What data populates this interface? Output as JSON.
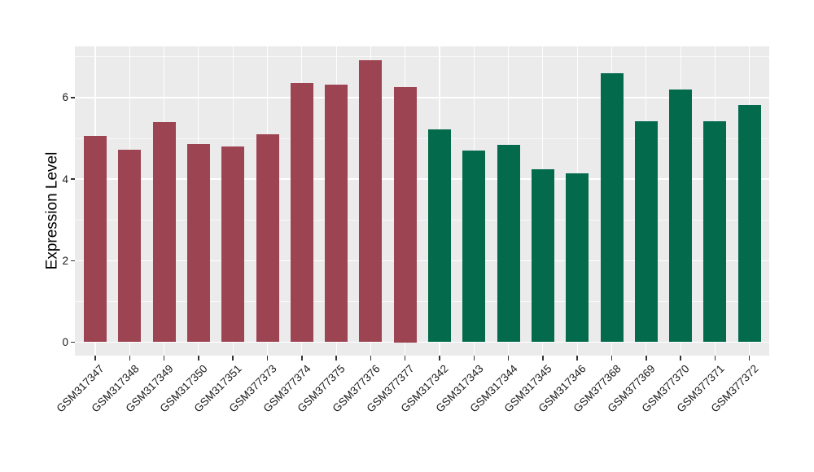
{
  "chart_data": {
    "type": "bar",
    "ylabel": "Expression Level",
    "xlabel": "",
    "ylim": [
      0,
      7.26
    ],
    "yticks_major": [
      0,
      2,
      4,
      6
    ],
    "yticks_minor": [
      1,
      3,
      5,
      7
    ],
    "grid": "on",
    "legend_position": "none",
    "categories": [
      "GSM317347",
      "GSM317348",
      "GSM317349",
      "GSM317350",
      "GSM317351",
      "GSM377373",
      "GSM377374",
      "GSM377375",
      "GSM377376",
      "GSM377377",
      "GSM317342",
      "GSM317343",
      "GSM317344",
      "GSM317345",
      "GSM317346",
      "GSM377368",
      "GSM377369",
      "GSM377370",
      "GSM377371",
      "GSM377372"
    ],
    "values": [
      5.05,
      4.73,
      5.39,
      4.87,
      4.8,
      5.1,
      6.36,
      6.32,
      6.92,
      6.25,
      5.22,
      4.7,
      4.84,
      4.24,
      4.14,
      6.6,
      5.41,
      6.2,
      5.42,
      5.82
    ],
    "bar_groups": [
      "group1",
      "group1",
      "group1",
      "group1",
      "group1",
      "group1",
      "group1",
      "group1",
      "group1",
      "group1",
      "group2",
      "group2",
      "group2",
      "group2",
      "group2",
      "group2",
      "group2",
      "group2",
      "group2",
      "group2"
    ],
    "group_colors": {
      "group1": "#9D4452",
      "group2": "#036B4C"
    },
    "colors": {
      "panel_bg": "#EBEBEB",
      "grid": "#FFFFFF",
      "tick_mark": "#333333",
      "tick_label": "#1A1A1A",
      "axis_title": "#000000"
    }
  }
}
